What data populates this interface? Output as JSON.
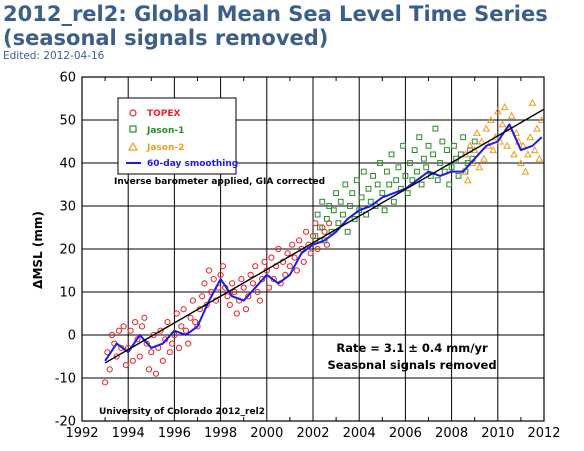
{
  "page": {
    "title": "2012_rel2: Global Mean Sea Level Time Series (seasonal signals removed)",
    "edited": "Edited: 2012-04-16"
  },
  "colors": {
    "topex": "#e8242a",
    "jason1": "#2a8a2a",
    "jason2": "#f29a1e",
    "smoothing": "#1a1aee",
    "trend": "#000000",
    "title": "#3b5f8a"
  },
  "chart_data": {
    "type": "scatter",
    "title": "",
    "xlabel": "",
    "ylabel": "ΔMSL (mm)",
    "xlim": [
      1992,
      2012
    ],
    "ylim": [
      -20,
      60
    ],
    "xticks": [
      "1992",
      "1994",
      "1996",
      "1998",
      "2000",
      "2002",
      "2004",
      "2006",
      "2008",
      "2010",
      "2012"
    ],
    "yticks": [
      "-20",
      "-10",
      "0",
      "10",
      "20",
      "30",
      "40",
      "50",
      "60"
    ],
    "grid": true,
    "legend_position": "top-left",
    "legend": [
      {
        "name": "TOPEX",
        "marker": "circle"
      },
      {
        "name": "Jason-1",
        "marker": "square"
      },
      {
        "name": "Jason-2",
        "marker": "triangle"
      },
      {
        "name": "60-day smoothing",
        "marker": "line"
      }
    ],
    "annotations": {
      "ib": "Inverse barometer applied, GIA corrected",
      "rate": "Rate = 3.1 ± 0.4 mm/yr",
      "seasonal": "Seasonal signals removed",
      "source": "University of Colorado 2012_rel2"
    },
    "trend": {
      "x": [
        1993.0,
        2012.0
      ],
      "y": [
        -6.5,
        52.5
      ]
    },
    "smoothing": {
      "x": [
        1993.0,
        1993.5,
        1994.0,
        1994.5,
        1995.0,
        1995.5,
        1996.0,
        1996.5,
        1997.0,
        1997.5,
        1998.0,
        1998.5,
        1999.0,
        1999.5,
        2000.0,
        2000.5,
        2001.0,
        2001.5,
        2002.0,
        2002.5,
        2003.0,
        2003.5,
        2004.0,
        2004.5,
        2005.0,
        2005.5,
        2006.0,
        2006.5,
        2007.0,
        2007.5,
        2008.0,
        2008.5,
        2009.0,
        2009.5,
        2010.0,
        2010.5,
        2011.0,
        2011.5,
        2011.9
      ],
      "y": [
        -6,
        -2,
        -4,
        0,
        -3,
        -2,
        1,
        0,
        2,
        8,
        13,
        9,
        8,
        11,
        14,
        12,
        14,
        19,
        21,
        22,
        24,
        27,
        29,
        30,
        32,
        33,
        34,
        36,
        38,
        37,
        38,
        38,
        41,
        44,
        45,
        49,
        43,
        44,
        46
      ]
    },
    "series": [
      {
        "name": "TOPEX",
        "x": [
          1993.0,
          1993.1,
          1993.2,
          1993.3,
          1993.4,
          1993.5,
          1993.6,
          1993.7,
          1993.8,
          1993.9,
          1994.0,
          1994.1,
          1994.2,
          1994.3,
          1994.4,
          1994.5,
          1994.6,
          1994.7,
          1994.8,
          1994.9,
          1995.0,
          1995.1,
          1995.2,
          1995.3,
          1995.4,
          1995.5,
          1995.6,
          1995.7,
          1995.8,
          1995.9,
          1996.0,
          1996.1,
          1996.2,
          1996.3,
          1996.4,
          1996.5,
          1996.6,
          1996.7,
          1996.8,
          1996.9,
          1997.0,
          1997.1,
          1997.2,
          1997.3,
          1997.4,
          1997.5,
          1997.6,
          1997.7,
          1997.8,
          1997.9,
          1998.0,
          1998.1,
          1998.2,
          1998.3,
          1998.4,
          1998.5,
          1998.6,
          1998.7,
          1998.8,
          1998.9,
          1999.0,
          1999.1,
          1999.2,
          1999.3,
          1999.4,
          1999.5,
          1999.6,
          1999.7,
          1999.8,
          1999.9,
          2000.0,
          2000.1,
          2000.2,
          2000.3,
          2000.4,
          2000.5,
          2000.6,
          2000.7,
          2000.8,
          2000.9,
          2001.0,
          2001.1,
          2001.2,
          2001.3,
          2001.4,
          2001.5,
          2001.6,
          2001.7,
          2001.8,
          2001.9,
          2002.0,
          2002.1,
          2002.2,
          2002.3,
          2002.4,
          2002.5,
          2002.6,
          2002.7
        ],
        "values": [
          -11,
          -4,
          -8,
          0,
          -2,
          -5,
          1,
          -3,
          2,
          -7,
          -3,
          1,
          -6,
          3,
          -1,
          -5,
          2,
          4,
          -2,
          -8,
          -4,
          0,
          -9,
          -3,
          1,
          -6,
          -1,
          3,
          -4,
          -2,
          0,
          5,
          -3,
          2,
          6,
          1,
          -2,
          4,
          8,
          3,
          2,
          6,
          9,
          12,
          7,
          15,
          10,
          13,
          8,
          11,
          14,
          16,
          11,
          9,
          7,
          12,
          10,
          5,
          8,
          13,
          11,
          6,
          9,
          14,
          12,
          16,
          10,
          8,
          13,
          17,
          15,
          11,
          18,
          13,
          16,
          20,
          12,
          17,
          14,
          19,
          16,
          21,
          18,
          15,
          22,
          20,
          17,
          24,
          21,
          19,
          23,
          26,
          20,
          22,
          25,
          24,
          21,
          26
        ]
      },
      {
        "name": "Jason-1",
        "x": [
          2002.1,
          2002.2,
          2002.3,
          2002.4,
          2002.5,
          2002.6,
          2002.7,
          2002.8,
          2002.9,
          2003.0,
          2003.1,
          2003.2,
          2003.3,
          2003.4,
          2003.5,
          2003.6,
          2003.7,
          2003.8,
          2003.9,
          2004.0,
          2004.1,
          2004.2,
          2004.3,
          2004.4,
          2004.5,
          2004.6,
          2004.7,
          2004.8,
          2004.9,
          2005.0,
          2005.1,
          2005.2,
          2005.3,
          2005.4,
          2005.5,
          2005.6,
          2005.7,
          2005.8,
          2005.9,
          2006.0,
          2006.1,
          2006.2,
          2006.3,
          2006.4,
          2006.5,
          2006.6,
          2006.7,
          2006.8,
          2006.9,
          2007.0,
          2007.1,
          2007.2,
          2007.3,
          2007.4,
          2007.5,
          2007.6,
          2007.7,
          2007.8,
          2007.9,
          2008.0,
          2008.1,
          2008.2,
          2008.3,
          2008.4,
          2008.5,
          2008.6,
          2008.7,
          2008.8,
          2008.9,
          2009.0
        ],
        "values": [
          23,
          28,
          25,
          31,
          22,
          27,
          30,
          24,
          29,
          33,
          26,
          31,
          28,
          35,
          24,
          30,
          33,
          27,
          36,
          29,
          32,
          38,
          28,
          34,
          31,
          37,
          30,
          35,
          40,
          33,
          29,
          38,
          35,
          42,
          31,
          36,
          39,
          34,
          44,
          37,
          33,
          40,
          36,
          43,
          38,
          46,
          35,
          41,
          39,
          44,
          37,
          42,
          48,
          36,
          40,
          45,
          38,
          43,
          35,
          39,
          44,
          41,
          37,
          42,
          46,
          38,
          40,
          43,
          41,
          45
        ]
      },
      {
        "name": "Jason-2",
        "x": [
          2008.5,
          2008.6,
          2008.7,
          2008.8,
          2008.9,
          2009.0,
          2009.1,
          2009.2,
          2009.3,
          2009.4,
          2009.5,
          2009.6,
          2009.7,
          2009.8,
          2009.9,
          2010.0,
          2010.1,
          2010.2,
          2010.3,
          2010.4,
          2010.5,
          2010.6,
          2010.7,
          2010.8,
          2010.9,
          2011.0,
          2011.1,
          2011.2,
          2011.3,
          2011.4,
          2011.5,
          2011.6,
          2011.7,
          2011.8,
          2011.9
        ],
        "values": [
          38,
          42,
          36,
          44,
          40,
          43,
          47,
          39,
          45,
          41,
          48,
          44,
          50,
          43,
          46,
          52,
          45,
          49,
          53,
          44,
          48,
          51,
          42,
          47,
          45,
          40,
          44,
          38,
          42,
          46,
          54,
          43,
          48,
          41,
          50
        ]
      }
    ]
  }
}
